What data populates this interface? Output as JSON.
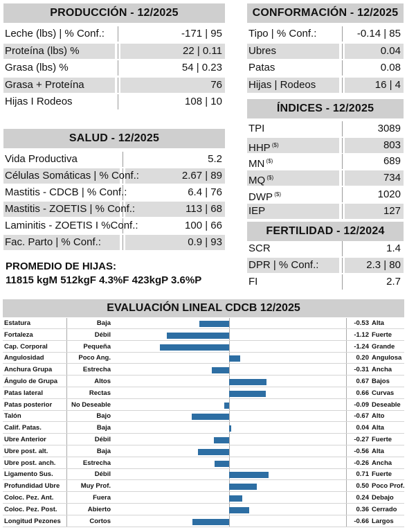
{
  "produccion": {
    "title": "PRODUCCIÓN - 12/2025",
    "rows": [
      {
        "label": "Leche (lbs) | % Conf.:",
        "value": "-171 | 95"
      },
      {
        "label": "Proteína (lbs) %",
        "value": "22 | 0.11"
      },
      {
        "label": "Grasa (lbs) %",
        "value": "54 | 0.23"
      },
      {
        "label": "Grasa + Proteína",
        "value": "76"
      },
      {
        "label": "Hijas I Rodeos",
        "value": "108 | 10"
      }
    ]
  },
  "conformacion": {
    "title": "CONFORMACIÓN - 12/2025",
    "rows": [
      {
        "label": "Tipo | % Conf.:",
        "value": "-0.14 | 85"
      },
      {
        "label": "Ubres",
        "value": "0.04"
      },
      {
        "label": "Patas",
        "value": "0.08"
      },
      {
        "label": "Hijas | Rodeos",
        "value": "16 | 4"
      }
    ]
  },
  "salud": {
    "title": "SALUD - 12/2025",
    "rows": [
      {
        "label": "Vida Productiva",
        "value": "5.2"
      },
      {
        "label": "Células Somáticas | % Conf.:",
        "value": "2.67 | 89"
      },
      {
        "label": "Mastitis - CDCB | % Conf.:",
        "value": "6.4 | 76"
      },
      {
        "label": "Mastitis - ZOETIS | % Conf.:",
        "value": "113 | 68"
      },
      {
        "label": "Laminitis - ZOETIS I %Conf.:",
        "value": "100 | 66"
      },
      {
        "label": "Fac. Parto | % Conf.:",
        "value": "0.9 | 93"
      }
    ]
  },
  "indices": {
    "title": "ÍNDICES - 12/2025",
    "sup": "($)",
    "rows": [
      {
        "label": "TPI",
        "value": "3089",
        "sup": false
      },
      {
        "label": "HHP",
        "value": "803",
        "sup": true
      },
      {
        "label": "MN",
        "value": "689",
        "sup": true
      },
      {
        "label": "MQ",
        "value": "734",
        "sup": true
      },
      {
        "label": "DWP",
        "value": "1020",
        "sup": true
      },
      {
        "label": "IEP",
        "value": "127",
        "sup": false
      }
    ]
  },
  "fertilidad": {
    "title": "FERTILIDAD - 12/2024",
    "rows": [
      {
        "label": "SCR",
        "value": "1.4"
      },
      {
        "label": "DPR | % Conf.:",
        "value": "2.3 | 80"
      },
      {
        "label": "FI",
        "value": "2.7"
      }
    ]
  },
  "promedio": {
    "title": "PROMEDIO DE HIJAS:",
    "values": "11815 kgM 512kgF 4.3%F 423kgP 3.6%P"
  },
  "chart_data": {
    "type": "bar",
    "title": "EVALUACIÓN LINEAL CDCB 12/2025",
    "orientation": "horizontal",
    "xlim": [
      -1.8,
      1.8
    ],
    "bar_color": "#2d6ea3",
    "traits": [
      {
        "trait": "Estatura",
        "low": "Baja",
        "value": -0.53,
        "high": "Alta"
      },
      {
        "trait": "Fortaleza",
        "low": "Débil",
        "value": -1.12,
        "high": "Fuerte"
      },
      {
        "trait": "Cap. Corporal",
        "low": "Pequeña",
        "value": -1.24,
        "high": "Grande"
      },
      {
        "trait": "Angulosidad",
        "low": "Poco Ang.",
        "value": 0.2,
        "high": "Angulosa"
      },
      {
        "trait": "Anchura Grupa",
        "low": "Estrecha",
        "value": -0.31,
        "high": "Ancha"
      },
      {
        "trait": "Ángulo de Grupa",
        "low": "Altos",
        "value": 0.67,
        "high": "Bajos"
      },
      {
        "trait": "Patas lateral",
        "low": "Rectas",
        "value": 0.66,
        "high": "Curvas"
      },
      {
        "trait": "Patas posterior",
        "low": "No Deseable",
        "value": -0.09,
        "high": "Deseable"
      },
      {
        "trait": "Talón",
        "low": "Bajo",
        "value": -0.67,
        "high": "Alto"
      },
      {
        "trait": "Calif. Patas.",
        "low": "Baja",
        "value": 0.04,
        "high": "Alta"
      },
      {
        "trait": "Ubre Anterior",
        "low": "Débil",
        "value": -0.27,
        "high": "Fuerte"
      },
      {
        "trait": "Ubre post. alt.",
        "low": "Baja",
        "value": -0.56,
        "high": "Alta"
      },
      {
        "trait": "Ubre post. anch.",
        "low": "Estrecha",
        "value": -0.26,
        "high": "Ancha"
      },
      {
        "trait": "Ligamento Sus.",
        "low": "Débil",
        "value": 0.71,
        "high": "Fuerte"
      },
      {
        "trait": "Profundidad Ubre",
        "low": "Muy Prof.",
        "value": 0.5,
        "high": "Poco Prof."
      },
      {
        "trait": "Coloc. Pez. Ant.",
        "low": "Fuera",
        "value": 0.24,
        "high": "Debajo"
      },
      {
        "trait": "Coloc. Pez. Post.",
        "low": "Abierto",
        "value": 0.36,
        "high": "Cerrado"
      },
      {
        "trait": "Longitud Pezones",
        "low": "Cortos",
        "value": -0.66,
        "high": "Largos"
      }
    ]
  }
}
